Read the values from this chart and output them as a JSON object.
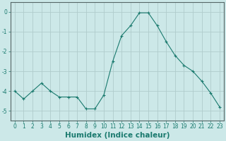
{
  "x": [
    0,
    1,
    2,
    3,
    4,
    5,
    6,
    7,
    8,
    9,
    10,
    11,
    12,
    13,
    14,
    15,
    16,
    17,
    18,
    19,
    20,
    21,
    22,
    23
  ],
  "y": [
    -4.0,
    -4.4,
    -4.0,
    -3.6,
    -4.0,
    -4.3,
    -4.3,
    -4.3,
    -4.9,
    -4.9,
    -4.2,
    -2.5,
    -1.2,
    -0.7,
    -0.05,
    -0.05,
    -0.7,
    -1.5,
    -2.2,
    -2.7,
    -3.0,
    -3.5,
    -4.1,
    -4.8
  ],
  "line_color": "#1a7a6e",
  "marker": "+",
  "marker_size": 3,
  "bg_color": "#cce8e8",
  "grid_color": "#b0cccc",
  "xlabel": "Humidex (Indice chaleur)",
  "xlim": [
    -0.5,
    23.5
  ],
  "ylim": [
    -5.5,
    0.5
  ],
  "yticks": [
    0,
    -1,
    -2,
    -3,
    -4,
    -5
  ],
  "ytick_labels": [
    "0",
    "-1",
    "-2",
    "-3",
    "-4",
    "-5"
  ],
  "xticks": [
    0,
    1,
    2,
    3,
    4,
    5,
    6,
    7,
    8,
    9,
    10,
    11,
    12,
    13,
    14,
    15,
    16,
    17,
    18,
    19,
    20,
    21,
    22,
    23
  ],
  "tick_fontsize": 5.5,
  "xlabel_fontsize": 7.5,
  "spine_color": "#556666",
  "line_width": 0.8,
  "marker_edge_width": 0.8
}
